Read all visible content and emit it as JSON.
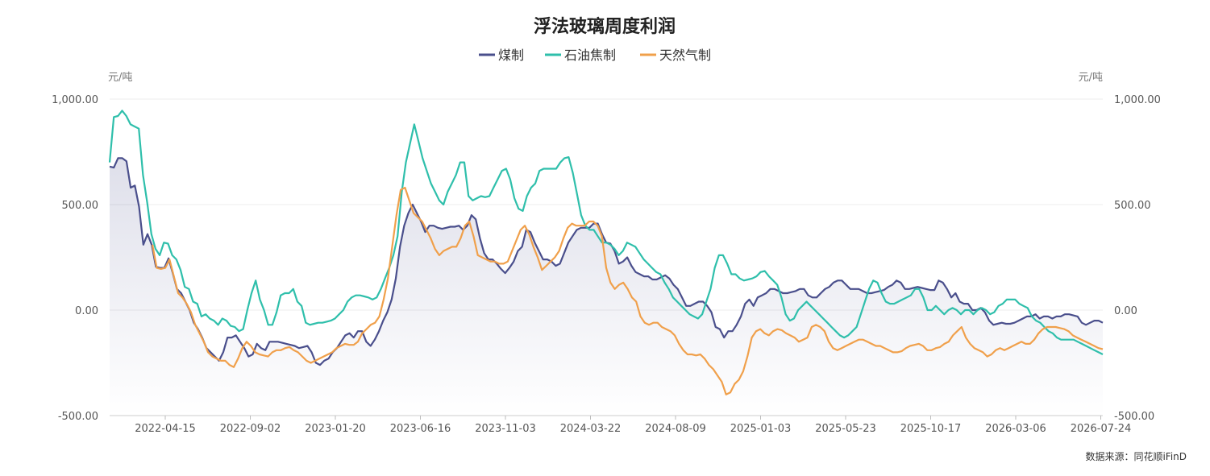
{
  "title": "浮法玻璃周度利润",
  "source": "数据来源：同花顺iFinD",
  "colors": {
    "coal": "#4a4f8c",
    "oil": "#2fbfab",
    "gas": "#f0a04b"
  },
  "chart_data": {
    "type": "line",
    "title": "浮法玻璃周度利润",
    "y_unit_left": "元/吨",
    "y_unit_right": "元/吨",
    "ylim": [
      -500,
      1000
    ],
    "yticks": [
      "1,000.00",
      "500.00",
      "0.00",
      "-500.00"
    ],
    "xticks": [
      "2022-04-15",
      "2022-09-02",
      "2023-01-20",
      "2023-06-16",
      "2023-11-03",
      "2024-03-22",
      "2024-08-09",
      "2025-01-03",
      "2025-05-23",
      "2025-10-17",
      "2026-03-06",
      "2026-07-24"
    ],
    "grid": true,
    "legend": "top-center",
    "series": [
      {
        "name": "煤制",
        "color": "#4a4f8c",
        "values": [
          680,
          675,
          720,
          720,
          705,
          580,
          590,
          490,
          310,
          360,
          310,
          205,
          200,
          200,
          245,
          175,
          100,
          80,
          40,
          0,
          -60,
          -90,
          -130,
          -180,
          -200,
          -220,
          -240,
          -200,
          -130,
          -130,
          -120,
          -150,
          -180,
          -220,
          -210,
          -160,
          -180,
          -190,
          -150,
          -150,
          -150,
          -155,
          -160,
          -165,
          -170,
          -180,
          -175,
          -170,
          -200,
          -250,
          -260,
          -240,
          -230,
          -200,
          -180,
          -150,
          -120,
          -110,
          -130,
          -100,
          -100,
          -150,
          -170,
          -140,
          -100,
          -50,
          -10,
          50,
          150,
          300,
          400,
          460,
          500,
          460,
          420,
          370,
          400,
          400,
          390,
          385,
          390,
          395,
          395,
          400,
          380,
          400,
          450,
          430,
          340,
          270,
          240,
          240,
          220,
          195,
          175,
          200,
          230,
          280,
          300,
          380,
          370,
          320,
          280,
          240,
          240,
          230,
          210,
          220,
          270,
          320,
          350,
          380,
          390,
          390,
          390,
          410,
          410,
          360,
          320,
          315,
          280,
          220,
          230,
          250,
          210,
          180,
          170,
          160,
          160,
          145,
          145,
          155,
          165,
          150,
          120,
          100,
          60,
          20,
          20,
          30,
          40,
          40,
          20,
          -10,
          -80,
          -90,
          -130,
          -100,
          -100,
          -70,
          -30,
          30,
          50,
          20,
          60,
          70,
          80,
          100,
          100,
          90,
          80,
          80,
          85,
          90,
          100,
          100,
          70,
          60,
          60,
          80,
          100,
          110,
          130,
          140,
          140,
          120,
          100,
          100,
          100,
          90,
          80,
          80,
          85,
          90,
          95,
          110,
          120,
          140,
          130,
          100,
          100,
          105,
          110,
          105,
          100,
          95,
          95,
          140,
          130,
          100,
          60,
          80,
          40,
          30,
          30,
          0,
          0,
          10,
          -10,
          -50,
          -70,
          -65,
          -60,
          -65,
          -65,
          -60,
          -50,
          -40,
          -30,
          -30,
          -20,
          -40,
          -30,
          -30,
          -40,
          -30,
          -30,
          -20,
          -20,
          -25,
          -30,
          -60,
          -70,
          -60,
          -50,
          -50,
          -60
        ]
      },
      {
        "name": "石油焦制",
        "color": "#2fbfab",
        "values": [
          700,
          915,
          920,
          945,
          920,
          880,
          870,
          860,
          640,
          510,
          360,
          290,
          260,
          320,
          315,
          260,
          240,
          190,
          110,
          100,
          40,
          30,
          -30,
          -20,
          -40,
          -50,
          -70,
          -40,
          -50,
          -75,
          -80,
          -100,
          -90,
          0,
          80,
          140,
          50,
          0,
          -70,
          -70,
          -10,
          70,
          80,
          80,
          100,
          40,
          20,
          -60,
          -70,
          -65,
          -60,
          -60,
          -55,
          -50,
          -40,
          -20,
          0,
          40,
          60,
          70,
          70,
          65,
          60,
          50,
          60,
          100,
          150,
          200,
          260,
          350,
          560,
          700,
          790,
          880,
          800,
          720,
          660,
          600,
          560,
          520,
          500,
          560,
          600,
          640,
          700,
          700,
          540,
          520,
          530,
          540,
          535,
          540,
          580,
          620,
          660,
          670,
          620,
          530,
          480,
          470,
          540,
          580,
          600,
          660,
          670,
          670,
          670,
          670,
          700,
          720,
          725,
          650,
          550,
          450,
          400,
          380,
          380,
          350,
          320,
          320,
          310,
          290,
          260,
          280,
          320,
          310,
          300,
          270,
          240,
          220,
          200,
          180,
          170,
          130,
          100,
          60,
          40,
          20,
          0,
          -20,
          -30,
          -40,
          -20,
          40,
          100,
          200,
          260,
          260,
          220,
          170,
          170,
          150,
          140,
          145,
          150,
          160,
          180,
          185,
          160,
          140,
          120,
          60,
          -20,
          -50,
          -40,
          0,
          20,
          40,
          20,
          0,
          -20,
          -40,
          -60,
          -80,
          -100,
          -120,
          -130,
          -120,
          -100,
          -80,
          -20,
          40,
          100,
          140,
          130,
          80,
          40,
          30,
          30,
          40,
          50,
          60,
          70,
          100,
          100,
          60,
          0,
          0,
          20,
          0,
          -20,
          0,
          10,
          0,
          -20,
          0,
          0,
          -20,
          0,
          10,
          0,
          -20,
          -10,
          20,
          30,
          50,
          50,
          50,
          30,
          20,
          10,
          -30,
          -50,
          -60,
          -80,
          -100,
          -110,
          -130,
          -140,
          -140,
          -140,
          -140,
          -150,
          -160,
          -170,
          -180,
          -190,
          -200,
          -210
        ]
      },
      {
        "name": "天然气制",
        "color": "#f0a04b",
        "values": [
          null,
          null,
          null,
          null,
          null,
          null,
          null,
          null,
          null,
          null,
          310,
          200,
          195,
          200,
          240,
          160,
          80,
          60,
          30,
          -10,
          -70,
          -110,
          -150,
          -200,
          -220,
          -230,
          -240,
          -240,
          -260,
          -270,
          -230,
          -180,
          -150,
          -170,
          -200,
          -210,
          -215,
          -220,
          -200,
          -190,
          -190,
          -180,
          -175,
          -190,
          -200,
          -220,
          -240,
          -250,
          -240,
          -230,
          -220,
          -210,
          -200,
          -180,
          -170,
          -160,
          -165,
          -165,
          -150,
          -110,
          -90,
          -70,
          -60,
          -30,
          50,
          150,
          300,
          450,
          570,
          580,
          520,
          460,
          440,
          420,
          380,
          340,
          290,
          260,
          280,
          290,
          300,
          300,
          340,
          400,
          420,
          350,
          260,
          250,
          240,
          230,
          230,
          220,
          220,
          230,
          280,
          330,
          380,
          400,
          360,
          300,
          250,
          190,
          210,
          230,
          250,
          280,
          340,
          390,
          410,
          400,
          400,
          400,
          420,
          420,
          400,
          350,
          200,
          130,
          100,
          120,
          130,
          100,
          60,
          40,
          -30,
          -60,
          -70,
          -60,
          -60,
          -80,
          -90,
          -100,
          -120,
          -160,
          -190,
          -210,
          -210,
          -215,
          -210,
          -230,
          -260,
          -280,
          -310,
          -340,
          -400,
          -390,
          -350,
          -330,
          -290,
          -220,
          -130,
          -100,
          -90,
          -110,
          -120,
          -100,
          -90,
          -95,
          -110,
          -120,
          -130,
          -150,
          -140,
          -130,
          -80,
          -70,
          -80,
          -100,
          -150,
          -180,
          -190,
          -180,
          -170,
          -160,
          -150,
          -140,
          -140,
          -150,
          -160,
          -170,
          -170,
          -180,
          -190,
          -200,
          -200,
          -195,
          -180,
          -170,
          -165,
          -160,
          -170,
          -190,
          -190,
          -180,
          -175,
          -160,
          -150,
          -120,
          -100,
          -80,
          -130,
          -160,
          -180,
          -190,
          -200,
          -220,
          -210,
          -190,
          -180,
          -190,
          -180,
          -170,
          -160,
          -150,
          -160,
          -160,
          -140,
          -110,
          -90,
          -80,
          -80,
          -80,
          -85,
          -90,
          -100,
          -120,
          -130,
          -140,
          -150,
          -160,
          -170,
          -180,
          -185
        ]
      }
    ]
  }
}
